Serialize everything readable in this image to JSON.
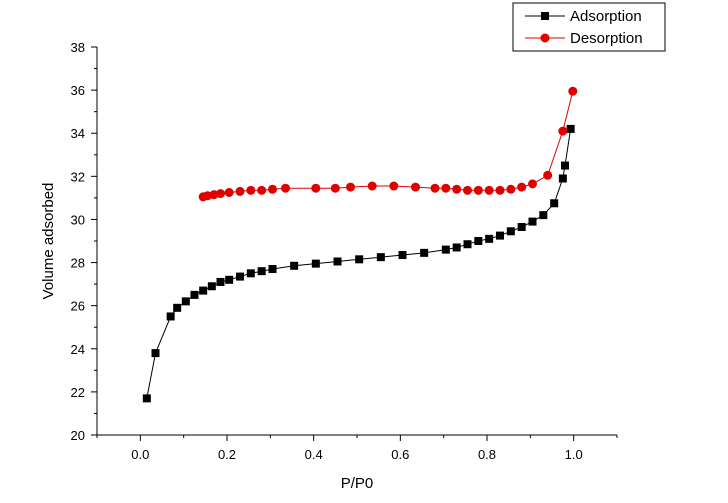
{
  "chart_data": {
    "type": "scatter",
    "xlabel": "P/P0",
    "ylabel": "Volume adsorbed",
    "xlim": [
      -0.1,
      1.1
    ],
    "ylim": [
      20,
      38
    ],
    "xticks": [
      0.0,
      0.2,
      0.4,
      0.6,
      0.8,
      1.0
    ],
    "xtick_labels": [
      "0.0",
      "0.2",
      "0.4",
      "0.6",
      "0.8",
      "1.0"
    ],
    "yticks": [
      20,
      22,
      24,
      26,
      28,
      30,
      32,
      34,
      36,
      38
    ],
    "ytick_labels": [
      "20",
      "22",
      "24",
      "26",
      "28",
      "30",
      "32",
      "34",
      "36",
      "38"
    ],
    "grid": false,
    "legend_position": "top-right",
    "series": [
      {
        "name": "Adsorption",
        "color": "#000000",
        "marker": "square",
        "x": [
          0.015,
          0.035,
          0.07,
          0.085,
          0.105,
          0.125,
          0.145,
          0.165,
          0.185,
          0.205,
          0.23,
          0.255,
          0.28,
          0.305,
          0.355,
          0.405,
          0.455,
          0.505,
          0.555,
          0.605,
          0.655,
          0.705,
          0.73,
          0.755,
          0.78,
          0.805,
          0.83,
          0.855,
          0.88,
          0.905,
          0.93,
          0.955,
          0.975,
          0.98,
          0.993
        ],
        "y": [
          21.7,
          23.8,
          25.5,
          25.9,
          26.2,
          26.5,
          26.7,
          26.9,
          27.1,
          27.2,
          27.35,
          27.5,
          27.6,
          27.7,
          27.85,
          27.95,
          28.05,
          28.15,
          28.25,
          28.35,
          28.45,
          28.6,
          28.7,
          28.85,
          29.0,
          29.1,
          29.25,
          29.45,
          29.65,
          29.9,
          30.2,
          30.75,
          31.9,
          32.5,
          34.2
        ]
      },
      {
        "name": "Desorption",
        "color": "#e00000",
        "marker": "circle",
        "x": [
          0.998,
          0.975,
          0.94,
          0.905,
          0.88,
          0.855,
          0.83,
          0.805,
          0.78,
          0.755,
          0.73,
          0.705,
          0.68,
          0.635,
          0.585,
          0.535,
          0.485,
          0.45,
          0.405,
          0.335,
          0.305,
          0.28,
          0.255,
          0.23,
          0.205,
          0.185,
          0.17,
          0.155,
          0.145
        ],
        "y": [
          35.95,
          34.1,
          32.05,
          31.65,
          31.5,
          31.4,
          31.35,
          31.35,
          31.35,
          31.35,
          31.4,
          31.45,
          31.45,
          31.5,
          31.55,
          31.55,
          31.5,
          31.45,
          31.45,
          31.45,
          31.4,
          31.35,
          31.35,
          31.3,
          31.25,
          31.2,
          31.15,
          31.1,
          31.05
        ]
      }
    ]
  }
}
